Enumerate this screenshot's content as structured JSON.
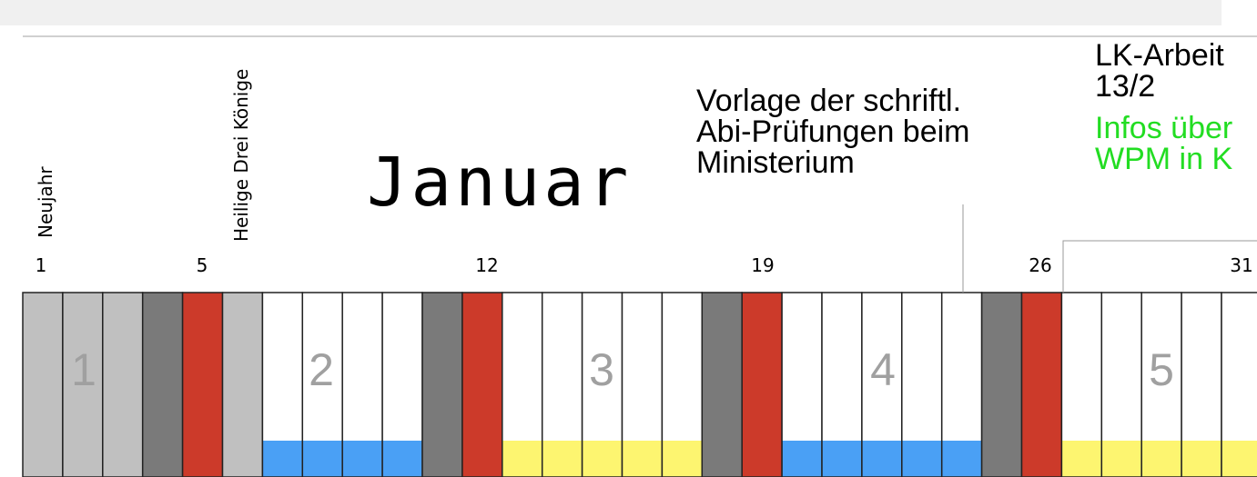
{
  "month": "Januar",
  "day_labels": [
    "1",
    "5",
    "12",
    "19",
    "26",
    "31"
  ],
  "holidays": [
    "Neujahr",
    "Heilige Drei Könige"
  ],
  "weeks": [
    "1",
    "2",
    "3",
    "4",
    "5"
  ],
  "notes": [
    {
      "lines": [
        "Vorlage der schriftl.",
        "Abi-Prüfungen beim",
        "Ministerium"
      ]
    },
    {
      "lines": [
        "LK-Arbeit",
        "13/2"
      ]
    },
    {
      "lines": [
        "Infos über",
        "WPM in K"
      ]
    }
  ]
}
